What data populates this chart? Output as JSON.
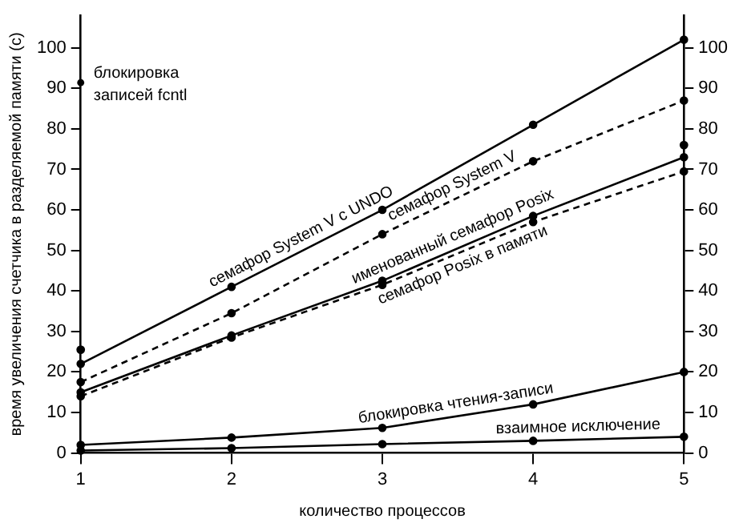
{
  "chart_data": {
    "type": "line",
    "xlabel": "количество процессов",
    "ylabel": "время увеличения счетчика в разделяемой памяти (с)",
    "x": [
      1,
      2,
      3,
      4,
      5
    ],
    "xlim": [
      1,
      5
    ],
    "xticks": [
      1,
      2,
      3,
      4,
      5
    ],
    "ylim": [
      0,
      108
    ],
    "yticks": [
      0,
      10,
      20,
      30,
      40,
      50,
      60,
      70,
      80,
      90,
      100
    ],
    "y2lim": [
      0,
      108
    ],
    "y2ticks": [
      0,
      10,
      20,
      30,
      40,
      50,
      60,
      70,
      80,
      90,
      100
    ],
    "grid": false,
    "legend": "top left",
    "marker": "circle",
    "series": [
      {
        "name": "семафор System V с UNDO",
        "color": "#000000",
        "line_style": "solid",
        "values": [
          22,
          41,
          60,
          81,
          102
        ]
      },
      {
        "name": "семафор System V",
        "color": "#000000",
        "line_style": "dashed",
        "values": [
          17.5,
          34.5,
          54,
          72,
          87
        ]
      },
      {
        "name": "именованный семафор Posix",
        "color": "#000000",
        "line_style": "solid",
        "values": [
          15,
          29,
          42.5,
          58.5,
          73
        ]
      },
      {
        "name": "семафор Posix в памяти",
        "color": "#000000",
        "line_style": "dashed",
        "values": [
          14,
          28.5,
          41.5,
          57,
          69.5
        ]
      },
      {
        "name": "блокировка чтения-записи",
        "color": "#000000",
        "line_style": "solid",
        "values": [
          2,
          3.8,
          6.2,
          12,
          20
        ]
      },
      {
        "name": "взаимное исключение",
        "color": "#000000",
        "line_style": "solid",
        "values": [
          0.6,
          1.2,
          2.2,
          3,
          4
        ]
      },
      {
        "name": "блокировка записей fcntl",
        "type": "scatter",
        "color": "#000000",
        "values": [
          25.5,
          null,
          null,
          null,
          76
        ]
      }
    ]
  }
}
